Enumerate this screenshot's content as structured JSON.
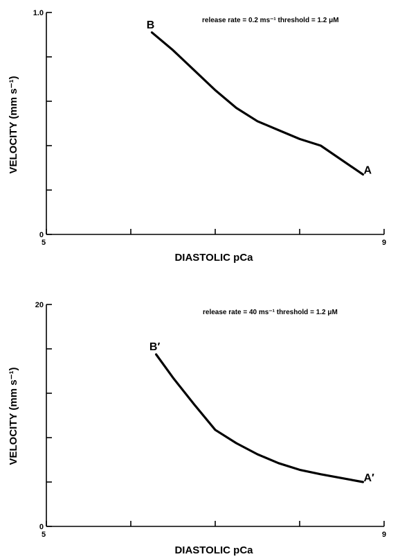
{
  "chart_data": [
    {
      "type": "line",
      "xlabel": "DIASTOLIC pCa",
      "ylabel": "VELOCITY (mm s⁻¹)",
      "xlim": [
        5,
        9
      ],
      "ylim": [
        0,
        1.0
      ],
      "x_tick_labels": [
        "5",
        "9"
      ],
      "y_tick_labels": [
        "0",
        "1.0"
      ],
      "x_ticks": [
        5,
        6,
        7,
        8,
        9
      ],
      "y_ticks": [
        0,
        0.2,
        0.4,
        0.6,
        0.8,
        1.0
      ],
      "annotation": "release rate = 0.2 ms⁻¹  threshold = 1.2 μM",
      "grid": false,
      "series": [
        {
          "x": [
            6.25,
            6.5,
            6.75,
            7.0,
            7.25,
            7.5,
            7.75,
            8.0,
            8.25,
            8.75
          ],
          "y": [
            0.91,
            0.83,
            0.74,
            0.65,
            0.57,
            0.51,
            0.47,
            0.43,
            0.4,
            0.27
          ],
          "start_label": "B",
          "end_label": "A"
        }
      ]
    },
    {
      "type": "line",
      "xlabel": "DIASTOLIC pCa",
      "ylabel": "VELOCITY (mm s⁻¹)",
      "xlim": [
        5,
        9
      ],
      "ylim": [
        0,
        20
      ],
      "x_tick_labels": [
        "5",
        "9"
      ],
      "y_tick_labels": [
        "0",
        "20"
      ],
      "x_ticks": [
        5,
        6,
        7,
        8,
        9
      ],
      "y_ticks": [
        0,
        4,
        8,
        12,
        16,
        20
      ],
      "annotation": "release rate = 40 ms⁻¹  threshold = 1.2 μM",
      "grid": false,
      "series": [
        {
          "x": [
            6.3,
            6.5,
            6.75,
            7.0,
            7.25,
            7.5,
            7.75,
            8.0,
            8.25,
            8.75
          ],
          "y": [
            15.5,
            13.4,
            11.0,
            8.7,
            7.5,
            6.5,
            5.7,
            5.1,
            4.7,
            4.0
          ],
          "start_label": "B′",
          "end_label": "A′"
        }
      ]
    }
  ]
}
